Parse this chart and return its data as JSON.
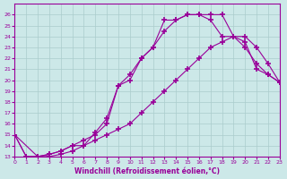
{
  "xlabel": "Windchill (Refroidissement éolien,°C)",
  "bg_color": "#cce8e8",
  "line_color": "#990099",
  "grid_color": "#aacccc",
  "xlim": [
    0,
    23
  ],
  "ylim": [
    13,
    27
  ],
  "yticks": [
    13,
    14,
    15,
    16,
    17,
    18,
    19,
    20,
    21,
    22,
    23,
    24,
    25,
    26
  ],
  "xticks": [
    0,
    1,
    2,
    3,
    4,
    5,
    6,
    7,
    8,
    9,
    10,
    11,
    12,
    13,
    14,
    15,
    16,
    17,
    18,
    19,
    20,
    21,
    22,
    23
  ],
  "line1_x": [
    0,
    1,
    2,
    3,
    4,
    5,
    6,
    7,
    8,
    9,
    10,
    11,
    12,
    13,
    14,
    15,
    16,
    17,
    18,
    19,
    20,
    21,
    22,
    23
  ],
  "line1_y": [
    15,
    13,
    13,
    13,
    13.2,
    13.5,
    14,
    14.5,
    15,
    15.5,
    16,
    17,
    18,
    19,
    20,
    21,
    22,
    23,
    23.5,
    24,
    23.5,
    21,
    20.5,
    19.8
  ],
  "line2_x": [
    0,
    1,
    2,
    3,
    4,
    5,
    6,
    7,
    8,
    9,
    10,
    11,
    12,
    13,
    14,
    15,
    16,
    17,
    18,
    19,
    20,
    21,
    22,
    23
  ],
  "line2_y": [
    15,
    13,
    13,
    13.2,
    13.5,
    14,
    14.5,
    15,
    16,
    19.5,
    20.5,
    22,
    23,
    24.5,
    25.5,
    26,
    26,
    25.5,
    24,
    24,
    23,
    21.5,
    20.5,
    19.8
  ],
  "line3_x": [
    0,
    2,
    3,
    4,
    5,
    6,
    7,
    8,
    9,
    10,
    11,
    12,
    13,
    14,
    15,
    16,
    17,
    18,
    19,
    20,
    21,
    22,
    23
  ],
  "line3_y": [
    15,
    13,
    13.2,
    13.5,
    14,
    14,
    15.2,
    16.5,
    19.5,
    20,
    22,
    23,
    25.5,
    25.5,
    26,
    26,
    26,
    26,
    24,
    24,
    23,
    21.5,
    19.8
  ]
}
